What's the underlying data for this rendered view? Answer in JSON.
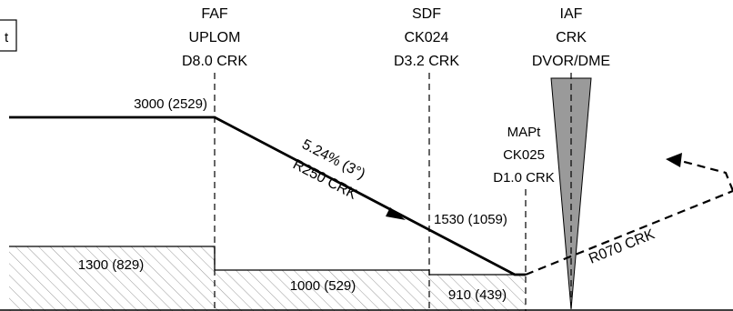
{
  "fixes": {
    "faf": {
      "line1": "FAF",
      "line2": "UPLOM",
      "line3": "D8.0 CRK"
    },
    "sdf": {
      "line1": "SDF",
      "line2": "CK024",
      "line3": "D3.2 CRK"
    },
    "iaf": {
      "line1": "IAF",
      "line2": "CRK",
      "line3": "DVOR/DME"
    },
    "mapt": {
      "line1": "MAPt",
      "line2": "CK025",
      "line3": "D1.0 CRK"
    }
  },
  "corner_label": "t",
  "altitudes": {
    "initial": "3000 (2529)",
    "sdf_crossing": "1530 (1059)"
  },
  "descent": {
    "gradient": "5.24% (3°)",
    "track": "R250 CRK"
  },
  "missed_approach_track": "R070 CRK",
  "minimum_altitudes": [
    {
      "id": "segment-1",
      "label": "1300 (829)"
    },
    {
      "id": "segment-2",
      "label": "1000 (529)"
    },
    {
      "id": "segment-3",
      "label": "910 (439)"
    }
  ]
}
